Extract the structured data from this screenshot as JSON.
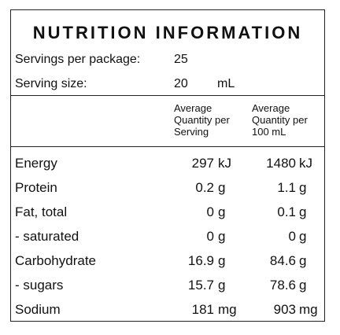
{
  "title": "NUTRITION INFORMATION",
  "servings_per_package": {
    "label": "Servings per package:",
    "value": "25"
  },
  "serving_size": {
    "label": "Serving size:",
    "value": "20",
    "unit": "mL"
  },
  "columns": {
    "per_serving": [
      "Average",
      "Quantity per",
      "Serving"
    ],
    "per_100": [
      "Average",
      "Quantity per",
      "100 mL"
    ]
  },
  "rows": [
    {
      "label": "Energy",
      "serving": "297",
      "serving_unit": "kJ",
      "per100": "1480",
      "per100_unit": "kJ"
    },
    {
      "label": "Protein",
      "serving": "0.2",
      "serving_unit": "g",
      "per100": "1.1",
      "per100_unit": "g"
    },
    {
      "label": "Fat, total",
      "serving": "0",
      "serving_unit": "g",
      "per100": "0.1",
      "per100_unit": "g"
    },
    {
      "label": "- saturated",
      "serving": "0",
      "serving_unit": "g",
      "per100": "0",
      "per100_unit": "g"
    },
    {
      "label": "Carbohydrate",
      "serving": "16.9",
      "serving_unit": "g",
      "per100": "84.6",
      "per100_unit": "g"
    },
    {
      "label": "- sugars",
      "serving": "15.7",
      "serving_unit": "g",
      "per100": "78.6",
      "per100_unit": "g"
    },
    {
      "label": "Sodium",
      "serving": "181",
      "serving_unit": "mg",
      "per100": "903",
      "per100_unit": "mg"
    }
  ]
}
